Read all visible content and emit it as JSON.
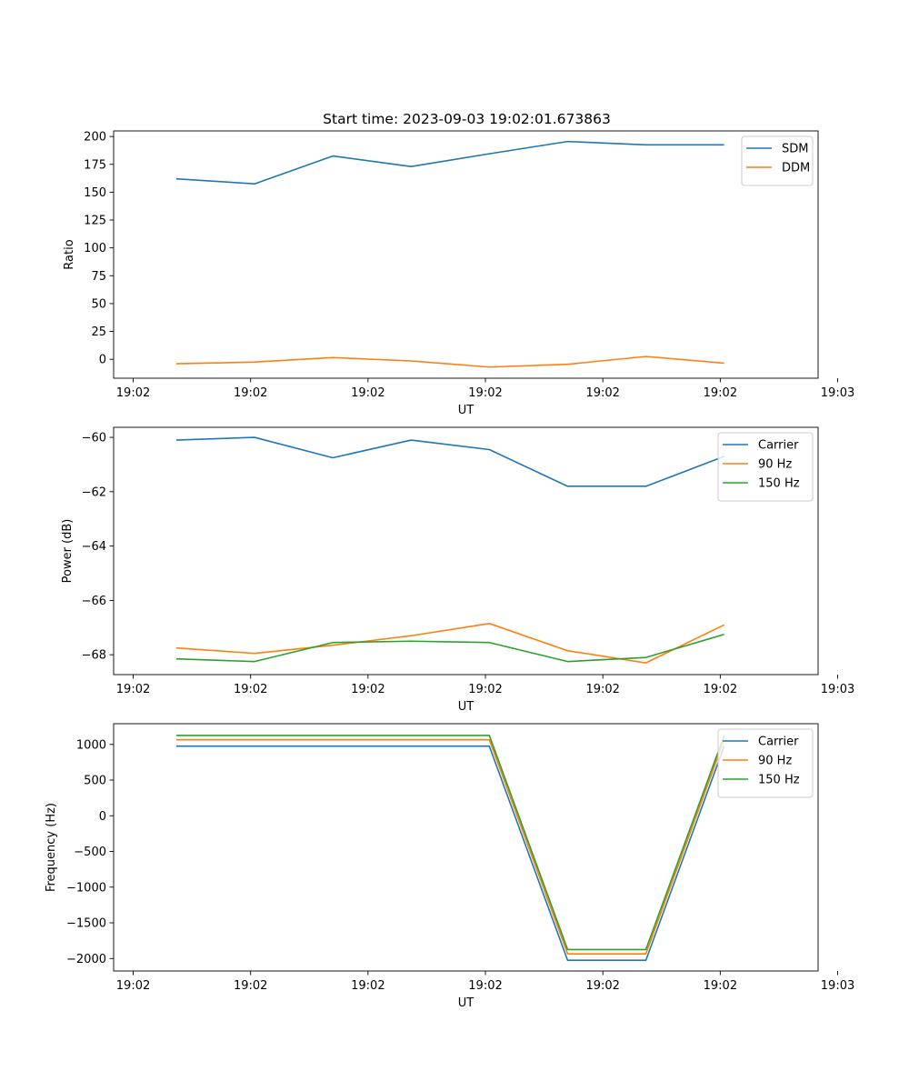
{
  "colors": {
    "blue": "#1f77b4",
    "orange": "#ff7f0e",
    "green": "#2ca02c"
  },
  "chart_data": [
    {
      "type": "line",
      "title": "Start time: 2023-09-03 19:02:01.673863",
      "xlabel": "UT",
      "ylabel": "Ratio",
      "x": [
        1,
        2,
        3,
        4,
        5,
        6,
        7,
        8
      ],
      "xlim": [
        0.2,
        9.2
      ],
      "xticks": [
        0.45,
        1.95,
        3.45,
        4.95,
        6.45,
        7.95,
        9.45
      ],
      "xtick_labels": [
        "19:02",
        "19:02",
        "19:02",
        "19:02",
        "19:02",
        "19:02",
        "19:03"
      ],
      "ylim": [
        -17,
        205
      ],
      "yticks": [
        0,
        25,
        50,
        75,
        100,
        125,
        150,
        175,
        200
      ],
      "ytick_labels": [
        "0",
        "25",
        "50",
        "75",
        "100",
        "125",
        "150",
        "175",
        "200"
      ],
      "legend_position": "top-right",
      "series": [
        {
          "name": "SDM",
          "color": "#1f77b4",
          "values": [
            162,
            157.5,
            182.5,
            173,
            184.5,
            195.5,
            192.5,
            192.5
          ]
        },
        {
          "name": "DDM",
          "color": "#ff7f0e",
          "values": [
            -4,
            -2.5,
            1.5,
            -1.5,
            -7,
            -4.5,
            2.5,
            -3.5
          ]
        }
      ]
    },
    {
      "type": "line",
      "title": "",
      "xlabel": "UT",
      "ylabel": "Power (dB)",
      "x": [
        1,
        2,
        3,
        4,
        5,
        6,
        7,
        8
      ],
      "xlim": [
        0.2,
        9.2
      ],
      "xticks": [
        0.45,
        1.95,
        3.45,
        4.95,
        6.45,
        7.95,
        9.45
      ],
      "xtick_labels": [
        "19:02",
        "19:02",
        "19:02",
        "19:02",
        "19:02",
        "19:02",
        "19:03"
      ],
      "ylim": [
        -68.73,
        -59.63
      ],
      "yticks": [
        -60,
        -62,
        -64,
        -66,
        -68
      ],
      "ytick_labels": [
        "−60",
        "−62",
        "−64",
        "−66",
        "−68"
      ],
      "legend_position": "top-right",
      "series": [
        {
          "name": "Carrier",
          "color": "#1f77b4",
          "values": [
            -60.1,
            -60.0,
            -60.75,
            -60.1,
            -60.45,
            -61.8,
            -61.8,
            -60.7
          ]
        },
        {
          "name": "90 Hz",
          "color": "#ff7f0e",
          "values": [
            -67.75,
            -67.95,
            -67.65,
            -67.3,
            -66.85,
            -67.85,
            -68.3,
            -66.9
          ]
        },
        {
          "name": "150 Hz",
          "color": "#2ca02c",
          "values": [
            -68.15,
            -68.25,
            -67.55,
            -67.5,
            -67.55,
            -68.25,
            -68.1,
            -67.25
          ]
        }
      ]
    },
    {
      "type": "line",
      "title": "",
      "xlabel": "UT",
      "ylabel": "Frequency (Hz)",
      "x": [
        1,
        2,
        3,
        4,
        5,
        6,
        7,
        8
      ],
      "xlim": [
        0.2,
        9.2
      ],
      "xticks": [
        0.45,
        1.95,
        3.45,
        4.95,
        6.45,
        7.95,
        9.45
      ],
      "xtick_labels": [
        "19:02",
        "19:02",
        "19:02",
        "19:02",
        "19:02",
        "19:02",
        "19:03"
      ],
      "ylim": [
        -2175,
        1290
      ],
      "yticks": [
        1000,
        500,
        0,
        -500,
        -1000,
        -1500,
        -2000
      ],
      "ytick_labels": [
        "1000",
        "500",
        "0",
        "−500",
        "−1000",
        "−1500",
        "−2000"
      ],
      "legend_position": "top-right",
      "series": [
        {
          "name": "Carrier",
          "color": "#1f77b4",
          "values": [
            975,
            975,
            975,
            975,
            975,
            -2025,
            -2025,
            975
          ]
        },
        {
          "name": "90 Hz",
          "color": "#ff7f0e",
          "values": [
            1065,
            1065,
            1065,
            1065,
            1065,
            -1935,
            -1935,
            1065
          ]
        },
        {
          "name": "150 Hz",
          "color": "#2ca02c",
          "values": [
            1125,
            1125,
            1125,
            1125,
            1125,
            -1875,
            -1875,
            1125
          ]
        }
      ]
    }
  ]
}
